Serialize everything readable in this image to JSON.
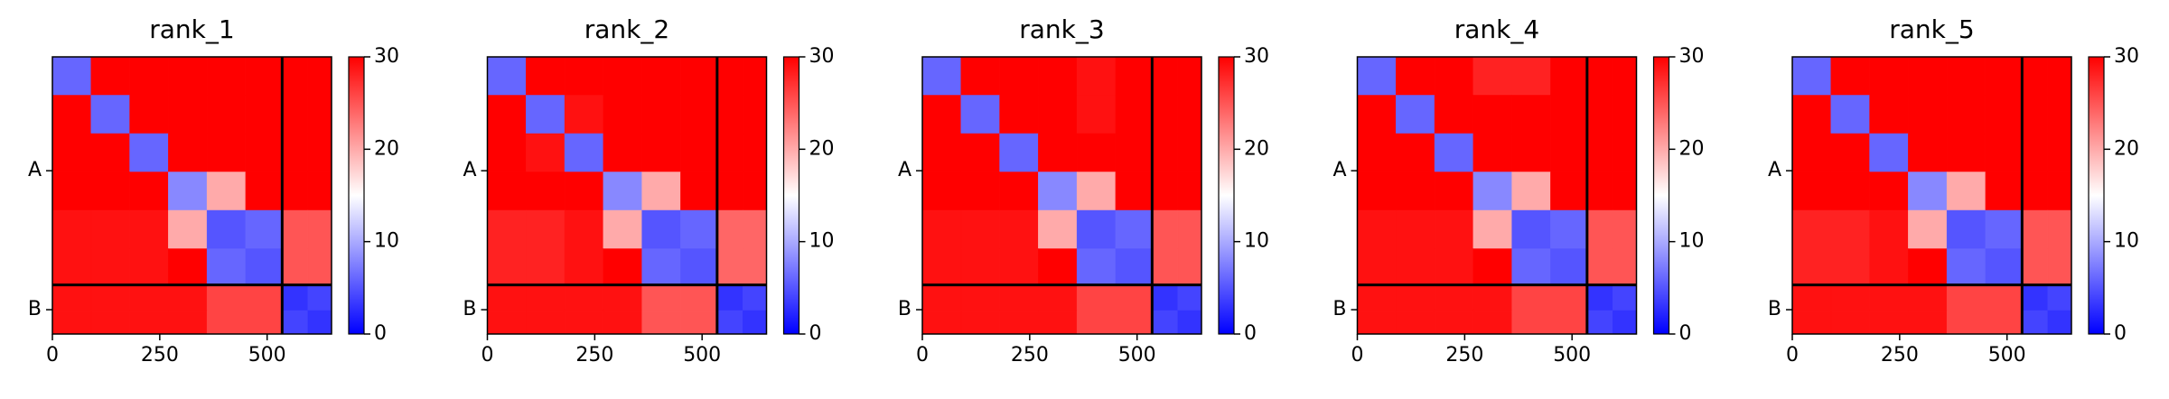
{
  "chart_data": [
    {
      "type": "heatmap",
      "title": "rank_1",
      "bins": [
        0,
        90,
        180,
        270,
        360,
        450,
        535,
        595,
        650
      ],
      "values": [
        [
          6,
          30,
          30,
          30,
          30,
          30,
          30,
          30
        ],
        [
          30,
          6,
          30,
          30,
          30,
          30,
          30,
          30
        ],
        [
          30,
          30,
          6,
          30,
          30,
          30,
          30,
          30
        ],
        [
          30,
          30,
          30,
          8,
          20,
          30,
          30,
          30
        ],
        [
          29,
          29,
          29,
          20,
          5,
          6,
          25,
          25
        ],
        [
          29,
          29,
          29,
          30,
          6,
          5,
          25,
          25
        ],
        [
          29,
          29,
          29,
          29,
          26,
          26,
          3,
          4
        ],
        [
          29,
          29,
          29,
          29,
          26,
          26,
          4,
          3
        ]
      ],
      "xlim": [
        0,
        650
      ],
      "ylim": [
        650,
        0
      ],
      "xticks": [
        0,
        250,
        500
      ],
      "yticks": [
        {
          "value": 267,
          "label": "A"
        },
        {
          "value": 593,
          "label": "B"
        }
      ],
      "chain_breaks": [
        535
      ],
      "clim": [
        0,
        30
      ],
      "cticks": [
        0,
        10,
        20,
        30
      ],
      "colormap": "bwr"
    },
    {
      "type": "heatmap",
      "title": "rank_2",
      "bins": [
        0,
        90,
        180,
        270,
        360,
        450,
        535,
        595,
        650
      ],
      "values": [
        [
          6,
          30,
          30,
          30,
          30,
          30,
          30,
          30
        ],
        [
          30,
          6,
          29,
          30,
          30,
          30,
          30,
          30
        ],
        [
          30,
          29,
          6,
          30,
          30,
          30,
          30,
          30
        ],
        [
          30,
          30,
          30,
          8,
          20,
          30,
          30,
          30
        ],
        [
          28,
          28,
          29,
          20,
          5,
          6,
          24,
          24
        ],
        [
          28,
          28,
          29,
          30,
          6,
          5,
          24,
          24
        ],
        [
          29,
          29,
          29,
          29,
          25,
          25,
          3,
          4
        ],
        [
          29,
          29,
          29,
          29,
          25,
          25,
          4,
          3
        ]
      ],
      "xlim": [
        0,
        650
      ],
      "ylim": [
        650,
        0
      ],
      "xticks": [
        0,
        250,
        500
      ],
      "yticks": [
        {
          "value": 267,
          "label": "A"
        },
        {
          "value": 593,
          "label": "B"
        }
      ],
      "chain_breaks": [
        535
      ],
      "clim": [
        0,
        30
      ],
      "cticks": [
        0,
        10,
        20,
        30
      ],
      "colormap": "bwr"
    },
    {
      "type": "heatmap",
      "title": "rank_3",
      "bins": [
        0,
        90,
        180,
        270,
        360,
        450,
        535,
        595,
        650
      ],
      "values": [
        [
          6,
          30,
          30,
          30,
          29,
          30,
          30,
          30
        ],
        [
          30,
          6,
          30,
          30,
          29,
          30,
          30,
          30
        ],
        [
          30,
          30,
          6,
          30,
          30,
          30,
          30,
          30
        ],
        [
          30,
          30,
          30,
          8,
          20,
          30,
          30,
          30
        ],
        [
          29,
          29,
          29,
          20,
          5,
          6,
          25,
          25
        ],
        [
          29,
          29,
          29,
          30,
          6,
          5,
          25,
          25
        ],
        [
          29,
          29,
          29,
          29,
          26,
          26,
          3,
          4
        ],
        [
          29,
          29,
          29,
          29,
          26,
          26,
          4,
          3
        ]
      ],
      "xlim": [
        0,
        650
      ],
      "ylim": [
        650,
        0
      ],
      "xticks": [
        0,
        250,
        500
      ],
      "yticks": [
        {
          "value": 267,
          "label": "A"
        },
        {
          "value": 593,
          "label": "B"
        }
      ],
      "chain_breaks": [
        535
      ],
      "clim": [
        0,
        30
      ],
      "cticks": [
        0,
        10,
        20,
        30
      ],
      "colormap": "bwr"
    },
    {
      "type": "heatmap",
      "title": "rank_4",
      "bins": [
        0,
        90,
        180,
        270,
        360,
        450,
        535,
        595,
        650
      ],
      "values": [
        [
          6,
          30,
          30,
          28,
          28,
          30,
          30,
          30
        ],
        [
          30,
          6,
          30,
          30,
          30,
          30,
          30,
          30
        ],
        [
          30,
          30,
          6,
          30,
          30,
          30,
          30,
          30
        ],
        [
          30,
          30,
          30,
          8,
          20,
          30,
          30,
          30
        ],
        [
          29,
          29,
          29,
          20,
          5,
          6,
          25,
          25
        ],
        [
          29,
          29,
          29,
          30,
          6,
          5,
          25,
          25
        ],
        [
          29,
          29,
          29,
          29,
          26,
          26,
          3,
          4
        ],
        [
          29,
          29,
          29,
          29,
          26,
          26,
          4,
          3
        ]
      ],
      "xlim": [
        0,
        650
      ],
      "ylim": [
        650,
        0
      ],
      "xticks": [
        0,
        250,
        500
      ],
      "yticks": [
        {
          "value": 267,
          "label": "A"
        },
        {
          "value": 593,
          "label": "B"
        }
      ],
      "chain_breaks": [
        535
      ],
      "clim": [
        0,
        30
      ],
      "cticks": [
        0,
        10,
        20,
        30
      ],
      "colormap": "bwr"
    },
    {
      "type": "heatmap",
      "title": "rank_5",
      "bins": [
        0,
        90,
        180,
        270,
        360,
        450,
        535,
        595,
        650
      ],
      "values": [
        [
          6,
          30,
          30,
          30,
          30,
          30,
          30,
          30
        ],
        [
          30,
          6,
          30,
          30,
          30,
          30,
          30,
          30
        ],
        [
          30,
          30,
          6,
          30,
          30,
          30,
          30,
          30
        ],
        [
          30,
          30,
          30,
          8,
          20,
          30,
          30,
          30
        ],
        [
          28,
          28,
          29,
          20,
          5,
          6,
          25,
          25
        ],
        [
          28,
          28,
          29,
          30,
          6,
          5,
          25,
          25
        ],
        [
          29,
          29,
          29,
          29,
          26,
          26,
          3,
          4
        ],
        [
          29,
          29,
          29,
          29,
          26,
          26,
          4,
          3
        ]
      ],
      "xlim": [
        0,
        650
      ],
      "ylim": [
        650,
        0
      ],
      "xticks": [
        0,
        250,
        500
      ],
      "yticks": [
        {
          "value": 267,
          "label": "A"
        },
        {
          "value": 593,
          "label": "B"
        }
      ],
      "chain_breaks": [
        535
      ],
      "clim": [
        0,
        30
      ],
      "cticks": [
        0,
        10,
        20,
        30
      ],
      "colormap": "bwr"
    }
  ]
}
